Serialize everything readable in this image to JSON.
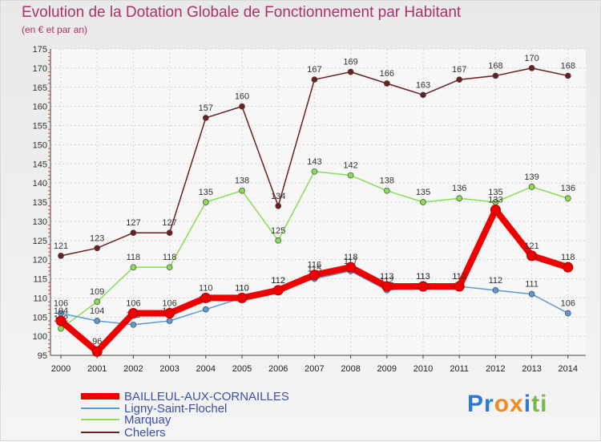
{
  "chart_data": {
    "type": "line",
    "title": "Evolution de la Dotation Globale de Fonctionnement par Habitant",
    "subtitle": "(en € et par an)",
    "x": [
      "2000",
      "2001",
      "2002",
      "2003",
      "2004",
      "2005",
      "2006",
      "2007",
      "2008",
      "2009",
      "2010",
      "2011",
      "2012",
      "2013",
      "2014"
    ],
    "ylim": [
      95,
      175
    ],
    "yticks": [
      95,
      100,
      105,
      110,
      115,
      120,
      125,
      130,
      135,
      140,
      145,
      150,
      155,
      160,
      165,
      170,
      175
    ],
    "series": [
      {
        "name": "BAILLEUL-AUX-CORNAILLES",
        "color": "#ee0000",
        "values": [
          104,
          96,
          106,
          106,
          110,
          110,
          112,
          116,
          118,
          113,
          113,
          113,
          133,
          121,
          118
        ]
      },
      {
        "name": "Ligny-Saint-Flochel",
        "color": "#5b9bd5",
        "values": [
          106,
          104,
          103,
          104,
          107,
          110,
          112,
          115,
          117,
          112,
          113,
          113,
          112,
          111,
          106
        ]
      },
      {
        "name": "Marquay",
        "color": "#88dd55",
        "values": [
          102,
          109,
          118,
          118,
          135,
          138,
          125,
          143,
          142,
          138,
          135,
          136,
          135,
          139,
          136
        ]
      },
      {
        "name": "Chelers",
        "color": "#6b1f1f",
        "values": [
          121,
          123,
          127,
          127,
          157,
          160,
          134,
          167,
          169,
          166,
          163,
          167,
          168,
          170,
          168
        ]
      }
    ]
  },
  "brand": {
    "text": "Proxiti",
    "letters": [
      "P",
      "r",
      "o",
      "x",
      "i",
      "t",
      "i"
    ],
    "colors": [
      "#2a7ad5",
      "#2a7ad5",
      "#f28a1e",
      "#f28a1e",
      "#2a7ad5",
      "#7ab648",
      "#7ab648"
    ]
  }
}
